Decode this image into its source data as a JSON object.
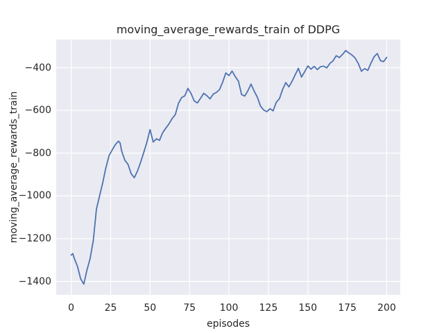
{
  "figure": {
    "title": "moving_average_rewards_train of DDPG",
    "xlabel": "episodes",
    "ylabel": "moving_average_rewards_train"
  },
  "chart_data": {
    "type": "line",
    "title": "moving_average_rewards_train of DDPG",
    "xlabel": "episodes",
    "ylabel": "moving_average_rewards_train",
    "grid": true,
    "legend": "none",
    "xlim": [
      -9.5,
      208.6
    ],
    "ylim": [
      -1463,
      -268.5
    ],
    "xticks": [
      0,
      25,
      50,
      75,
      100,
      125,
      150,
      175,
      200
    ],
    "yticks": [
      -400,
      -600,
      -800,
      -1000,
      -1200,
      -1400
    ],
    "style": {
      "figure_bg": "#ffffff",
      "axes_bg": "#eaeaf2",
      "grid_color": "#ffffff",
      "text_color": "#262626",
      "line_color": "#4c72b0"
    },
    "series": [
      {
        "name": "moving_average_rewards_train",
        "color": "#4c72b0",
        "x": [
          0,
          1,
          2,
          4,
          6,
          8,
          10,
          12,
          14,
          16,
          18,
          20,
          22,
          24,
          26,
          28,
          30,
          31,
          32,
          34,
          36,
          38,
          40,
          42,
          44,
          46,
          48,
          50,
          52,
          54,
          56,
          58,
          60,
          62,
          64,
          66,
          68,
          70,
          72,
          74,
          76,
          78,
          80,
          82,
          84,
          86,
          88,
          90,
          92,
          94,
          96,
          98,
          100,
          102,
          104,
          106,
          108,
          110,
          112,
          114,
          116,
          118,
          120,
          122,
          124,
          126,
          128,
          130,
          132,
          134,
          136,
          138,
          140,
          142,
          144,
          146,
          148,
          150,
          152,
          154,
          156,
          158,
          160,
          162,
          164,
          166,
          168,
          170,
          172,
          174,
          176,
          178,
          180,
          182,
          184,
          186,
          188,
          190,
          192,
          194,
          196,
          198,
          200
        ],
        "y": [
          -1277,
          -1270,
          -1293,
          -1330,
          -1388,
          -1413,
          -1347,
          -1293,
          -1210,
          -1062,
          -1000,
          -938,
          -868,
          -812,
          -785,
          -760,
          -744,
          -752,
          -790,
          -833,
          -852,
          -896,
          -915,
          -884,
          -843,
          -797,
          -748,
          -690,
          -748,
          -733,
          -740,
          -704,
          -683,
          -663,
          -638,
          -620,
          -567,
          -540,
          -532,
          -497,
          -521,
          -556,
          -565,
          -543,
          -520,
          -531,
          -546,
          -524,
          -516,
          -503,
          -468,
          -425,
          -437,
          -416,
          -442,
          -463,
          -526,
          -533,
          -508,
          -477,
          -510,
          -538,
          -580,
          -598,
          -606,
          -592,
          -602,
          -562,
          -545,
          -502,
          -470,
          -490,
          -464,
          -433,
          -403,
          -444,
          -419,
          -392,
          -407,
          -394,
          -409,
          -396,
          -393,
          -401,
          -380,
          -368,
          -344,
          -353,
          -338,
          -320,
          -331,
          -341,
          -355,
          -381,
          -417,
          -404,
          -413,
          -379,
          -349,
          -334,
          -367,
          -372,
          -352
        ]
      }
    ]
  }
}
